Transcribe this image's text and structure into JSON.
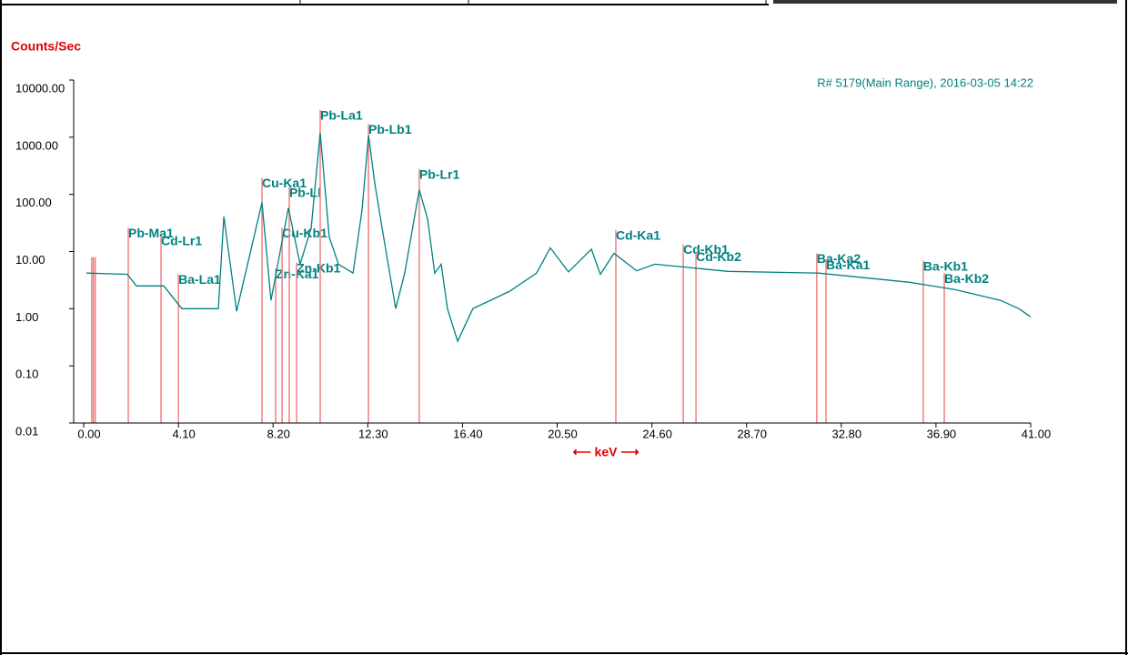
{
  "chart_data": {
    "type": "line",
    "title": "Counts/Sec",
    "subtitle": "R# 5179(Main Range), 2016-03-05 14:22",
    "xlabel": "⟵ keV ⟶",
    "ylog": true,
    "xlim": [
      0,
      41
    ],
    "ylim": [
      0.01,
      10000
    ],
    "xticks": [
      {
        "value": 0,
        "label": "0.00"
      },
      {
        "value": 4.1,
        "label": "4.10"
      },
      {
        "value": 8.2,
        "label": "8.20"
      },
      {
        "value": 12.3,
        "label": "12.30"
      },
      {
        "value": 16.4,
        "label": "16.40"
      },
      {
        "value": 20.5,
        "label": "20.50"
      },
      {
        "value": 24.6,
        "label": "24.60"
      },
      {
        "value": 28.7,
        "label": "28.70"
      },
      {
        "value": 32.8,
        "label": "32.80"
      },
      {
        "value": 36.9,
        "label": "36.90"
      },
      {
        "value": 41,
        "label": "41.00"
      }
    ],
    "yticks": [
      {
        "value": 0.01,
        "label": "0.01"
      },
      {
        "value": 0.1,
        "label": "0.10"
      },
      {
        "value": 1,
        "label": "1.00"
      },
      {
        "value": 10,
        "label": "10.00"
      },
      {
        "value": 100,
        "label": "100.00"
      },
      {
        "value": 1000,
        "label": "1000.00"
      },
      {
        "value": 10000,
        "label": "10000.00"
      }
    ],
    "series": [
      {
        "color": "#008080",
        "x": [
          0.12,
          1.89,
          2.28,
          3.47,
          4.25,
          5.83,
          6.07,
          6.62,
          7.72,
          8.11,
          8.86,
          9.37,
          9.85,
          10.24,
          10.63,
          11.03,
          11.66,
          12.05,
          12.33,
          12.6,
          12.92,
          13.51,
          13.9,
          14.53,
          14.89,
          15.2,
          15.48,
          15.75,
          16.19,
          16.85,
          18.43,
          19.61,
          20.2,
          20.99,
          21.98,
          22.37,
          22.96,
          23.94,
          24.73,
          27.89,
          31.82,
          35.76,
          37.73,
          39.7,
          40.49,
          41.0
        ],
        "values": [
          4.2,
          4,
          2.5,
          2.5,
          1,
          1,
          41,
          0.9,
          72,
          1.4,
          58,
          6,
          26,
          1200,
          18,
          6,
          4.2,
          54,
          1080,
          160,
          26,
          1,
          4.2,
          120,
          37,
          4.2,
          6,
          1,
          0.27,
          1,
          2,
          4.2,
          11.6,
          4.4,
          11,
          4,
          9.3,
          4.6,
          6,
          4.5,
          4.2,
          2.9,
          2.15,
          1.4,
          1,
          0.72
        ]
      }
    ],
    "element_lines": {
      "color": "#f08080",
      "lines": [
        {
          "label": null,
          "x": 0.35,
          "y": 8
        },
        {
          "label": null,
          "x": 0.42,
          "y": 8
        },
        {
          "label": null,
          "x": 0.5,
          "y": 8
        },
        {
          "label": "Pb-Ma1",
          "x": 1.93,
          "y": 26
        },
        {
          "label": "Cd-Lr1",
          "x": 3.35,
          "y": 19
        },
        {
          "label": "Ba-La1",
          "x": 4.1,
          "y": 4
        },
        {
          "label": "Cu-Ka1",
          "x": 7.72,
          "y": 195
        },
        {
          "label": "Zn-Ka1",
          "x": 8.31,
          "y": 5
        },
        {
          "label": "Cu-Kb1",
          "x": 8.59,
          "y": 26
        },
        {
          "label": "Pb-Ll",
          "x": 8.9,
          "y": 134
        },
        {
          "label": "Zn-Kb1",
          "x": 9.22,
          "y": 6.4
        },
        {
          "label": "Pb-La1",
          "x": 10.24,
          "y": 3000
        },
        {
          "label": "Pb-Lb1",
          "x": 12.33,
          "y": 1700
        },
        {
          "label": "Pb-Lr1",
          "x": 14.53,
          "y": 280
        },
        {
          "label": "Cd-Ka1",
          "x": 23.04,
          "y": 24
        },
        {
          "label": "Cd-Kb1",
          "x": 25.96,
          "y": 13.4
        },
        {
          "label": "Cd-Kb2",
          "x": 26.51,
          "y": 10
        },
        {
          "label": "Ba-Ka2",
          "x": 31.74,
          "y": 9.3
        },
        {
          "label": "Ba-Ka1",
          "x": 32.14,
          "y": 7.2
        },
        {
          "label": "Ba-Kb1",
          "x": 36.35,
          "y": 6.9
        },
        {
          "label": "Ba-Kb2",
          "x": 37.26,
          "y": 4.2
        }
      ]
    }
  }
}
